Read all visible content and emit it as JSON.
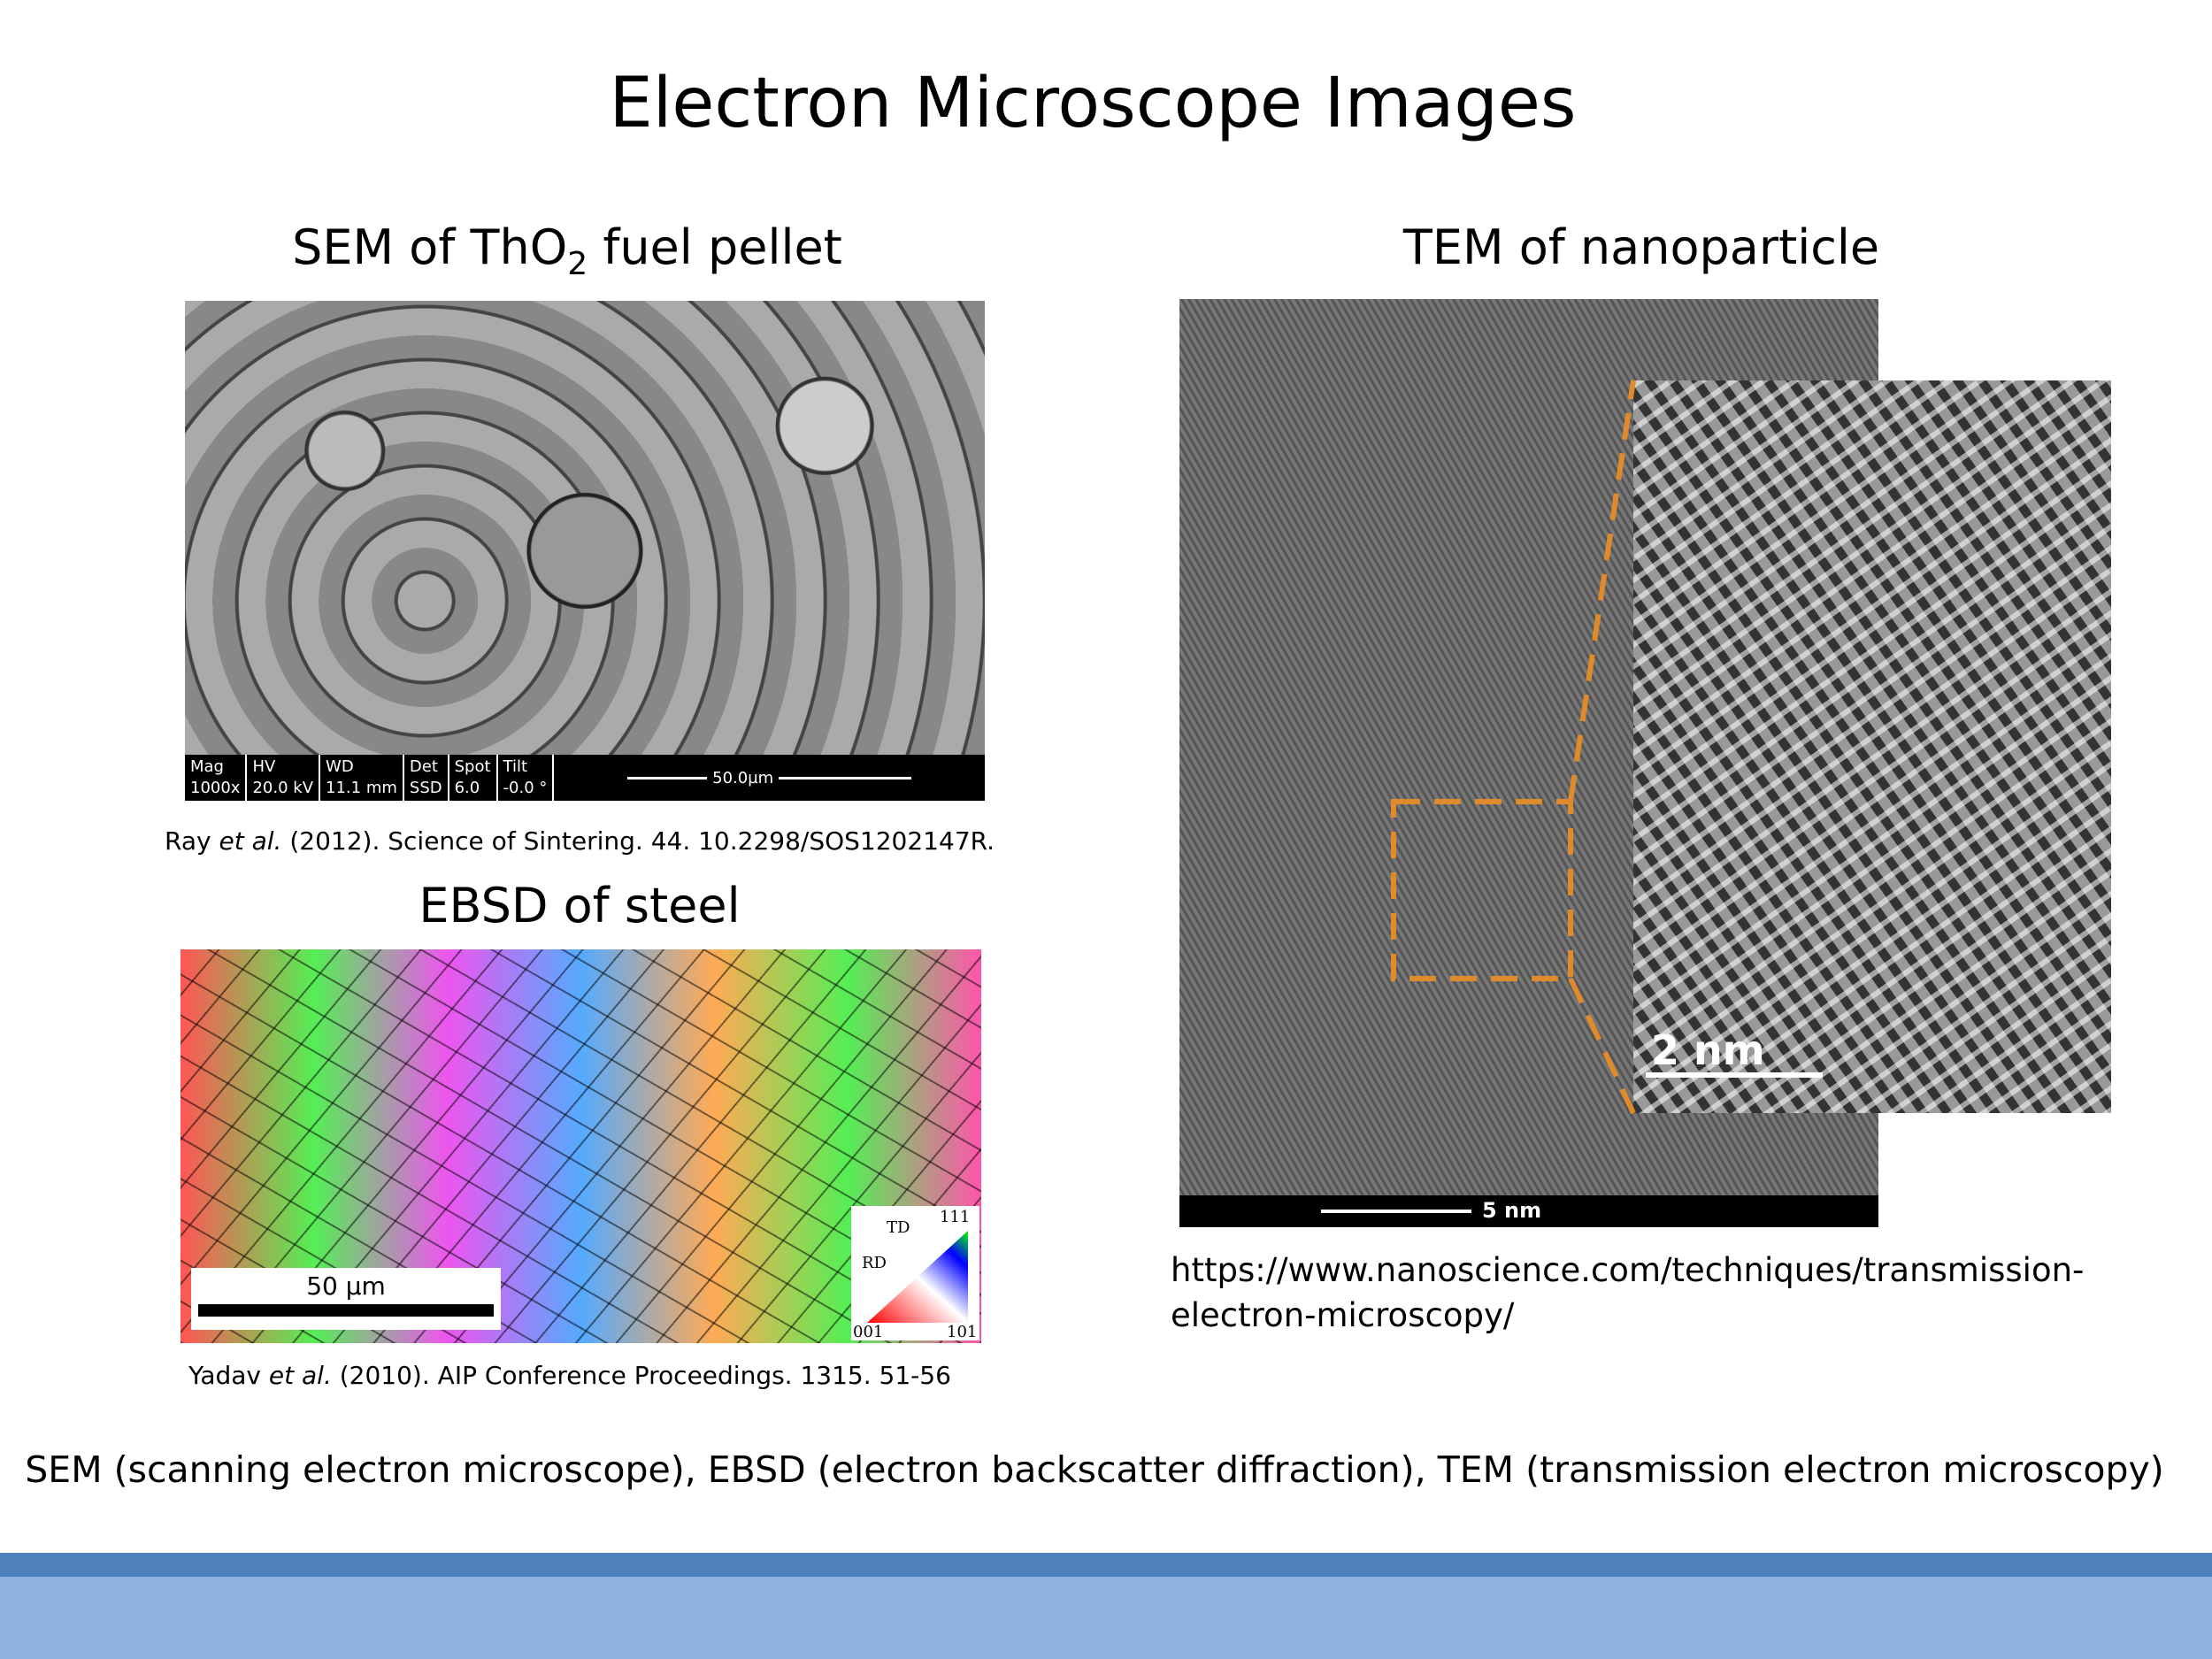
{
  "title": "Electron Microscope Images",
  "sem": {
    "heading": {
      "before": "SEM of ThO",
      "sub": "2",
      "after": " fuel pellet"
    },
    "databar": {
      "headers": [
        "Mag",
        "HV",
        "WD",
        "Det",
        "Spot",
        "Tilt"
      ],
      "values": [
        "1000x",
        "20.0 kV",
        "11.1 mm",
        "SSD",
        "6.0",
        "-0.0 °"
      ],
      "scale": "50.0µm"
    },
    "caption": {
      "author": "Ray ",
      "etal": "et al.",
      "rest": " (2012). Science of Sintering. 44. 10.2298/SOS1202147R."
    }
  },
  "ebsd": {
    "heading": "EBSD of steel",
    "scale": "50 µm",
    "legend": {
      "td": "TD",
      "rd": "RD",
      "c111": "111",
      "c001": "001",
      "c101": "101"
    },
    "caption": {
      "author": "Yadav ",
      "etal": "et al.",
      "rest": " (2010). AIP Conference Proceedings. 1315. 51-56"
    }
  },
  "tem": {
    "heading": "TEM of nanoparticle",
    "scale": "5 nm",
    "inset_scale": "2 nm",
    "source": [
      "https://www.nanoscience.com/techniques/transmission-",
      "electron-microscopy/"
    ]
  },
  "footnote": "SEM (scanning electron microscope), EBSD (electron backscatter diffraction), TEM (transmission electron microscopy)"
}
